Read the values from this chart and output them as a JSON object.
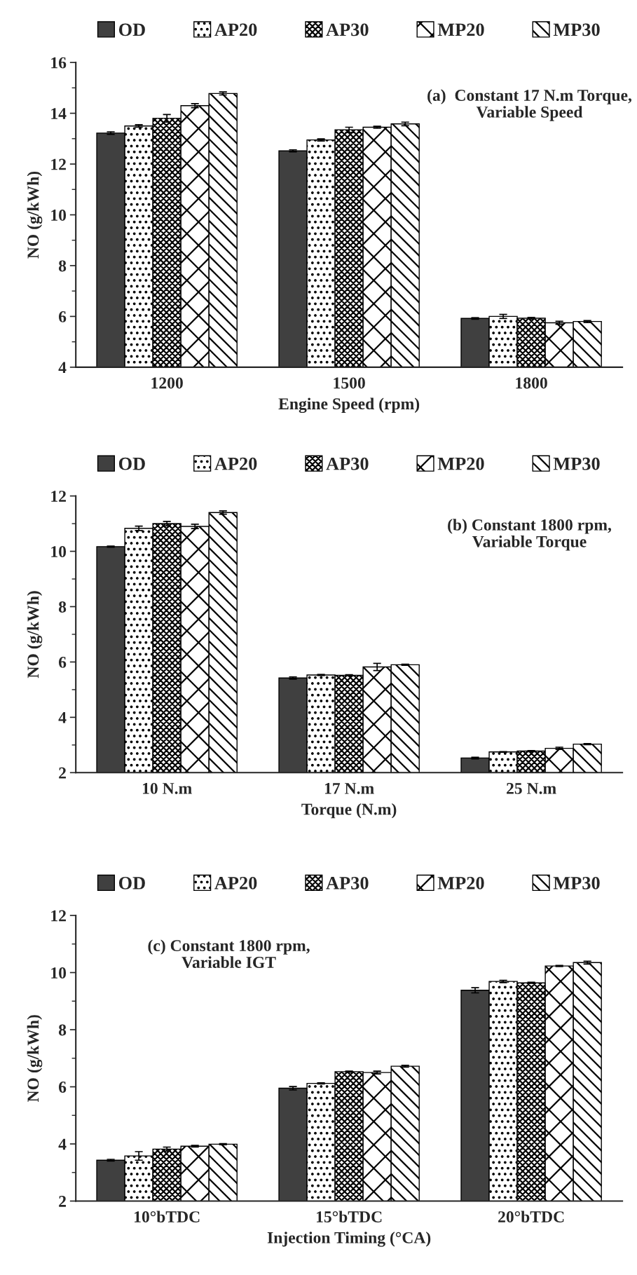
{
  "chart_data": [
    {
      "type": "bar",
      "xlabel": "Engine Speed (rpm)",
      "ylabel": "NO (g/kWh)",
      "categories": [
        "1200",
        "1500",
        "1800"
      ],
      "ylim": [
        4,
        16
      ],
      "yticks": [
        4,
        6,
        8,
        10,
        12,
        14,
        16
      ],
      "legend": "top",
      "grid": false,
      "annotations": [
        "(a)  Constant 17 N.m Torque,\nVariable Speed"
      ],
      "series": [
        {
          "name": "OD",
          "color": "#404040",
          "values": [
            13.22,
            12.52,
            5.92
          ],
          "errors": [
            0.05,
            0.04,
            0.03
          ]
        },
        {
          "name": "AP20",
          "color": "#000000",
          "values": [
            13.5,
            12.95,
            6.0
          ],
          "errors": [
            0.05,
            0.04,
            0.08
          ]
        },
        {
          "name": "AP30",
          "color": "#000000",
          "values": [
            13.8,
            13.35,
            5.93
          ],
          "errors": [
            0.15,
            0.1,
            0.03
          ]
        },
        {
          "name": "MP20",
          "color": "#000000",
          "values": [
            14.3,
            13.45,
            5.75
          ],
          "errors": [
            0.08,
            0.04,
            0.06
          ]
        },
        {
          "name": "MP30",
          "color": "#000000",
          "values": [
            14.78,
            13.58,
            5.8
          ],
          "errors": [
            0.06,
            0.07,
            0.04
          ]
        }
      ]
    },
    {
      "type": "bar",
      "xlabel": "Torque (N.m)",
      "ylabel": "NO (g/kWh)",
      "categories": [
        "10 N.m",
        "17 N.m",
        "25 N.m"
      ],
      "ylim": [
        2,
        12
      ],
      "yticks": [
        2,
        4,
        6,
        8,
        10,
        12
      ],
      "legend": "top",
      "grid": false,
      "annotations": [
        "(b) Constant 1800 rpm,\nVariable Torque"
      ],
      "series": [
        {
          "name": "OD",
          "color": "#404040",
          "values": [
            10.17,
            5.42,
            2.53
          ],
          "errors": [
            0.02,
            0.04,
            0.03
          ]
        },
        {
          "name": "AP20",
          "color": "#000000",
          "values": [
            10.83,
            5.53,
            2.75
          ],
          "errors": [
            0.08,
            0.02,
            0.01
          ]
        },
        {
          "name": "AP30",
          "color": "#000000",
          "values": [
            11.0,
            5.52,
            2.78
          ],
          "errors": [
            0.08,
            0.02,
            0.02
          ]
        },
        {
          "name": "MP20",
          "color": "#000000",
          "values": [
            10.9,
            5.82,
            2.88
          ],
          "errors": [
            0.08,
            0.13,
            0.04
          ]
        },
        {
          "name": "MP30",
          "color": "#000000",
          "values": [
            11.4,
            5.9,
            3.03
          ],
          "errors": [
            0.06,
            0.02,
            0.02
          ]
        }
      ]
    },
    {
      "type": "bar",
      "xlabel": "Injection Timing (°CA)",
      "ylabel": "NO (g/kWh)",
      "categories": [
        "10°bTDC",
        "15°bTDC",
        "20°bTDC"
      ],
      "ylim": [
        2,
        12
      ],
      "yticks": [
        2,
        4,
        6,
        8,
        10,
        12
      ],
      "legend": "top",
      "grid": false,
      "annotations": [
        "(c) Constant 1800 rpm,\nVariable IGT"
      ],
      "series": [
        {
          "name": "OD",
          "color": "#404040",
          "values": [
            3.43,
            5.95,
            9.38
          ],
          "errors": [
            0.03,
            0.06,
            0.09
          ]
        },
        {
          "name": "AP20",
          "color": "#000000",
          "values": [
            3.58,
            6.12,
            9.69
          ],
          "errors": [
            0.15,
            0.02,
            0.04
          ]
        },
        {
          "name": "AP30",
          "color": "#000000",
          "values": [
            3.82,
            6.53,
            9.64
          ],
          "errors": [
            0.07,
            0.02,
            0.02
          ]
        },
        {
          "name": "MP20",
          "color": "#000000",
          "values": [
            3.92,
            6.5,
            10.23
          ],
          "errors": [
            0.03,
            0.05,
            0.02
          ]
        },
        {
          "name": "MP30",
          "color": "#000000",
          "values": [
            3.99,
            6.72,
            10.35
          ],
          "errors": [
            0.02,
            0.03,
            0.05
          ]
        }
      ]
    }
  ]
}
